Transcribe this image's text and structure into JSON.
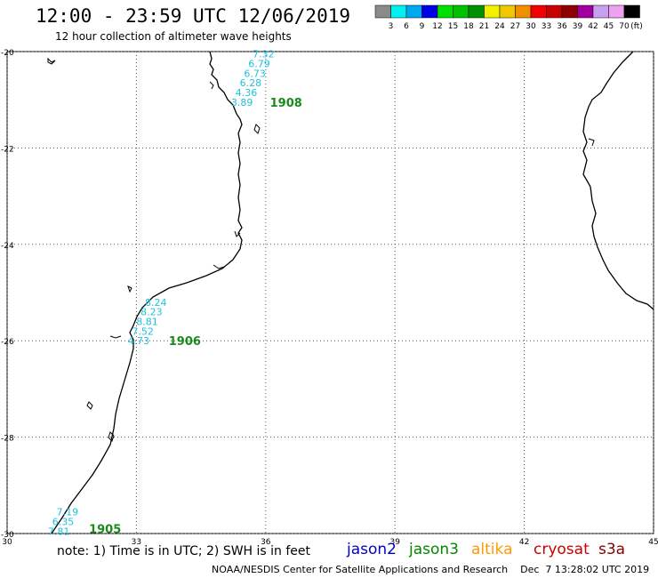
{
  "header": {
    "title": "12:00 - 23:59 UTC 12/06/2019",
    "subtitle": "12 hour collection of altimeter wave heights"
  },
  "colorbar": {
    "colors": [
      "#8a8a8a",
      "#00f0f0",
      "#00a8f0",
      "#0000e8",
      "#00e000",
      "#00c000",
      "#009000",
      "#f0f000",
      "#f0c800",
      "#f09000",
      "#f00000",
      "#c80000",
      "#900000",
      "#a000a0",
      "#c8a0f0",
      "#f0a0f0",
      "#000000"
    ],
    "labels": [
      "3",
      "6",
      "9",
      "12",
      "15",
      "18",
      "21",
      "24",
      "27",
      "30",
      "33",
      "36",
      "39",
      "42",
      "45",
      "70"
    ],
    "unit": "(ft)"
  },
  "axes": {
    "lon_ticks": [
      "30",
      "33",
      "36",
      "39",
      "42",
      "45"
    ],
    "lat_ticks": [
      "-20",
      "-22",
      "-24",
      "-26",
      "-28",
      "-30"
    ],
    "lon_range": [
      30,
      45
    ],
    "lat_range": [
      -30,
      -20
    ]
  },
  "passes": [
    {
      "id": "1908",
      "label_lon": 36.1,
      "label_lat": -21.05,
      "values": [
        {
          "v": "7.32",
          "lon": 35.95,
          "lat": -20.05
        },
        {
          "v": "6.79",
          "lon": 35.85,
          "lat": -20.25
        },
        {
          "v": "6.73",
          "lon": 35.75,
          "lat": -20.45
        },
        {
          "v": "6.28",
          "lon": 35.65,
          "lat": -20.65
        },
        {
          "v": "4.36",
          "lon": 35.55,
          "lat": -20.85
        },
        {
          "v": "3.89",
          "lon": 35.45,
          "lat": -21.05
        }
      ]
    },
    {
      "id": "1906",
      "label_lon": 33.75,
      "label_lat": -26.0,
      "values": [
        {
          "v": "8.24",
          "lon": 33.45,
          "lat": -25.2
        },
        {
          "v": "8.23",
          "lon": 33.35,
          "lat": -25.4
        },
        {
          "v": "8.81",
          "lon": 33.25,
          "lat": -25.6
        },
        {
          "v": "7.52",
          "lon": 33.15,
          "lat": -25.8
        },
        {
          "v": "4.73",
          "lon": 33.05,
          "lat": -26.0
        }
      ]
    },
    {
      "id": "1905",
      "label_lon": 31.9,
      "label_lat": -29.9,
      "values": [
        {
          "v": "7.19",
          "lon": 31.4,
          "lat": -29.55
        },
        {
          "v": "6.35",
          "lon": 31.3,
          "lat": -29.75
        },
        {
          "v": "7.81",
          "lon": 31.2,
          "lat": -29.95
        }
      ]
    }
  ],
  "footer": {
    "note": "note: 1) Time is in UTC; 2) SWH is in feet",
    "missions": [
      {
        "name": "jason2",
        "color": "#0000cc"
      },
      {
        "name": "jason3",
        "color": "#008800"
      },
      {
        "name": "altika",
        "color": "#ff9900"
      },
      {
        "name": "cryosat",
        "color": "#cc0000"
      },
      {
        "name": "s3a",
        "color": "#880000"
      }
    ],
    "credit": "NOAA/NESDIS Center for Satellite Applications and Research    Dec  7 13:28:02 UTC 2019"
  }
}
